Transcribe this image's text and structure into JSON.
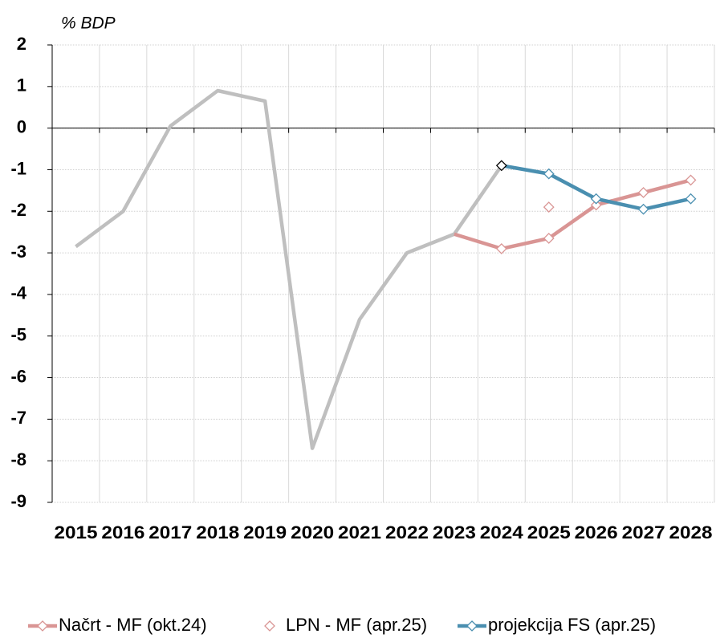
{
  "chart_data": {
    "type": "line",
    "y_label": "% BDP",
    "categories": [
      "2015",
      "2016",
      "2017",
      "2018",
      "2019",
      "2020",
      "2021",
      "2022",
      "2023",
      "2024",
      "2025",
      "2026",
      "2027",
      "2028"
    ],
    "series": [
      {
        "color": "#bfbfbf",
        "marker": false,
        "values": [
          -2.85,
          -2.0,
          0.05,
          0.9,
          0.65,
          -7.7,
          -4.6,
          -3.0,
          -2.55,
          -0.9,
          null,
          null,
          null,
          null
        ]
      },
      {
        "name": "Načrt - MF (okt.24)",
        "color": "#d99594",
        "marker": true,
        "line": true,
        "values": [
          null,
          null,
          null,
          null,
          null,
          null,
          null,
          null,
          -2.55,
          -2.9,
          -2.65,
          -1.85,
          -1.55,
          -1.25
        ]
      },
      {
        "name": "LPN - MF (apr.25)",
        "color": "#d99594",
        "marker": true,
        "line": false,
        "values": [
          null,
          null,
          null,
          null,
          null,
          null,
          null,
          null,
          null,
          null,
          -1.9,
          null,
          null,
          null
        ]
      },
      {
        "name": "projekcija FS (apr.25)",
        "color": "#4a8fb0",
        "marker": true,
        "line": true,
        "values": [
          null,
          null,
          null,
          null,
          null,
          null,
          null,
          null,
          null,
          -0.9,
          -1.1,
          -1.7,
          -1.95,
          -1.7
        ]
      }
    ],
    "ylim": [
      -9,
      2
    ],
    "yticks": [
      -9,
      -8,
      -7,
      -6,
      -5,
      -4,
      -3,
      -2,
      -1,
      0,
      1,
      2
    ],
    "grid": true,
    "legend": "bottom"
  }
}
